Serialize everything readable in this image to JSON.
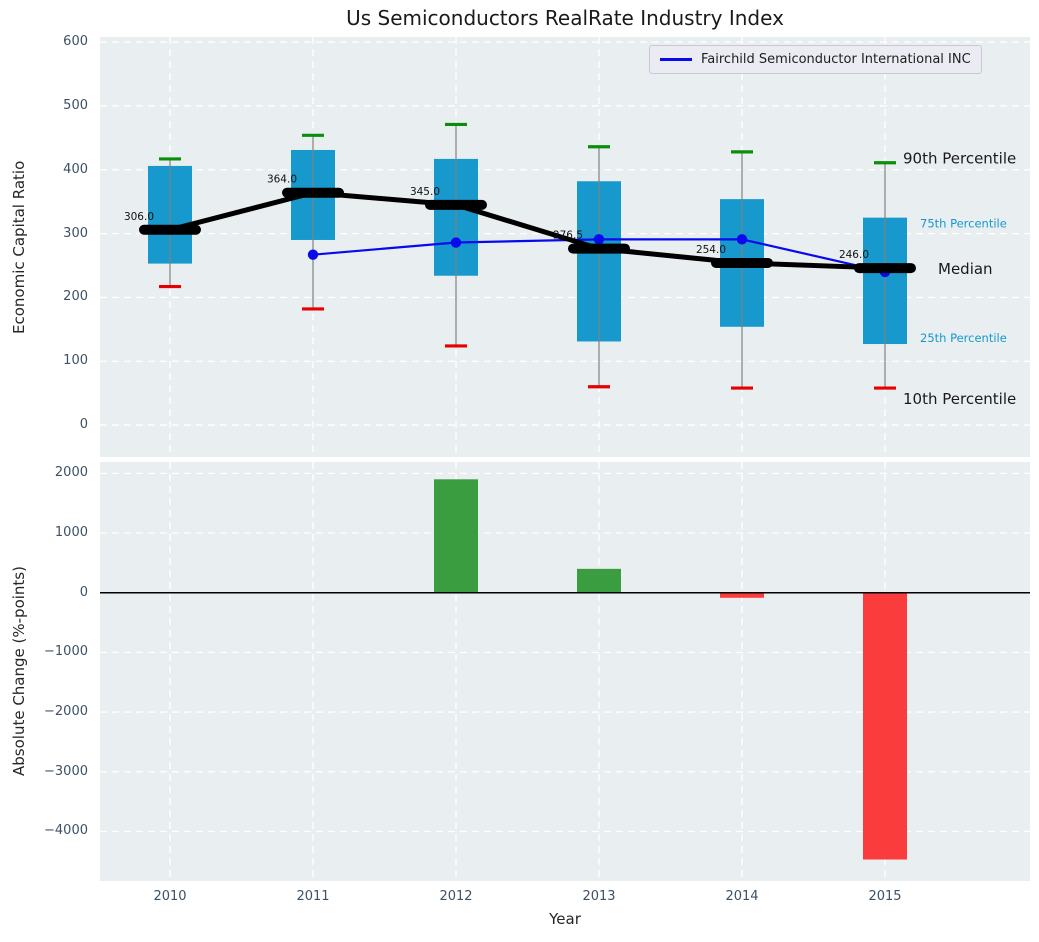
{
  "title": "Us Semiconductors RealRate Industry Index",
  "legend": {
    "label": "Fairchild Semiconductor International INC"
  },
  "colors": {
    "panel_bg": "#e9eef1",
    "box_fill": "#1799cd",
    "whisker": "#808080",
    "cap_high": "#0a8f0a",
    "cap_low": "#e60000",
    "median": "#000000",
    "company_line": "#0909ee",
    "bar_positive": "#3a9e40",
    "bar_negative": "#fb3c3c",
    "tick_text": "#3d5166",
    "annotation_big": "#1a1a1a",
    "annotation_small": "#1799cd",
    "zero_line": "#000000"
  },
  "chart_data": [
    {
      "type": "box",
      "title": "Us Semiconductors RealRate Industry Index",
      "ylabel": "Economic Capital Ratio",
      "categories": [
        "2010",
        "2011",
        "2012",
        "2013",
        "2014",
        "2015"
      ],
      "yticks": [
        0,
        100,
        200,
        300,
        400,
        500,
        600
      ],
      "ylim": [
        -50,
        608
      ],
      "grid": true,
      "legend_position": "upper right",
      "series": [
        {
          "name": "90th Percentile",
          "values": [
            417,
            454,
            471,
            436,
            428,
            411
          ]
        },
        {
          "name": "75th Percentile",
          "values": [
            406,
            431,
            417,
            382,
            354,
            325
          ]
        },
        {
          "name": "Median",
          "values": [
            306,
            364,
            345,
            276.5,
            254,
            246
          ]
        },
        {
          "name": "25th Percentile",
          "values": [
            253,
            290,
            234,
            131,
            154,
            127
          ]
        },
        {
          "name": "10th Percentile",
          "values": [
            217,
            182,
            124,
            60,
            58,
            58
          ]
        },
        {
          "name": "Fairchild Semiconductor International INC",
          "values": [
            null,
            267,
            286,
            291,
            291,
            240
          ]
        }
      ],
      "median_labels": [
        "306.0",
        "364.0",
        "345.0",
        "276.5",
        "254.0",
        "246.0"
      ],
      "annotations": [
        {
          "text": "90th Percentile",
          "anchor_value": 411,
          "style": "big"
        },
        {
          "text": "75th Percentile",
          "anchor_value": 325,
          "style": "small"
        },
        {
          "text": "Median",
          "anchor_value": 246,
          "style": "big"
        },
        {
          "text": "25th Percentile",
          "anchor_value": 127,
          "style": "small"
        },
        {
          "text": "10th Percentile",
          "anchor_value": 58,
          "style": "big"
        }
      ]
    },
    {
      "type": "bar",
      "ylabel": "Absolute Change (%-points)",
      "xlabel": "Year",
      "categories": [
        "2010",
        "2011",
        "2012",
        "2013",
        "2014",
        "2015"
      ],
      "values": [
        0,
        0,
        1900,
        400,
        -85,
        -4470
      ],
      "yticks": [
        2000,
        1000,
        0,
        -1000,
        -2000,
        -3000,
        -4000
      ],
      "ylim": [
        -4830,
        2190
      ],
      "grid": true
    }
  ]
}
